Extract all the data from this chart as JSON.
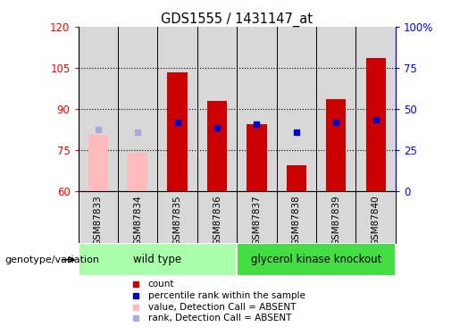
{
  "title": "GDS1555 / 1431147_at",
  "samples": [
    "GSM87833",
    "GSM87834",
    "GSM87835",
    "GSM87836",
    "GSM87837",
    "GSM87838",
    "GSM87839",
    "GSM87840"
  ],
  "count_values": [
    null,
    null,
    103.5,
    93.0,
    84.5,
    69.5,
    93.5,
    108.5
  ],
  "count_absent": [
    80.5,
    74.0,
    null,
    null,
    null,
    null,
    null,
    null
  ],
  "rank_values": [
    null,
    null,
    85.0,
    83.0,
    84.5,
    81.5,
    85.0,
    86.0
  ],
  "rank_absent": [
    82.5,
    81.5,
    null,
    null,
    null,
    null,
    null,
    null
  ],
  "ylim_left": [
    60,
    120
  ],
  "ylim_right": [
    0,
    100
  ],
  "yticks_left": [
    60,
    75,
    90,
    105,
    120
  ],
  "yticks_right": [
    0,
    25,
    50,
    75,
    100
  ],
  "ytick_labels_right": [
    "0",
    "25",
    "50",
    "75",
    "100%"
  ],
  "bar_color_present": "#cc0000",
  "bar_color_absent": "#ffbbbb",
  "rank_color_present": "#0000cc",
  "rank_color_absent": "#aaaadd",
  "wild_type_label": "wild type",
  "knockout_label": "glycerol kinase knockout",
  "genotype_label": "genotype/variation",
  "wild_type_color": "#aaffaa",
  "knockout_color": "#44dd44",
  "legend_items": [
    {
      "color": "#cc0000",
      "label": "count"
    },
    {
      "color": "#0000cc",
      "label": "percentile rank within the sample"
    },
    {
      "color": "#ffbbbb",
      "label": "value, Detection Call = ABSENT"
    },
    {
      "color": "#aaaadd",
      "label": "rank, Detection Call = ABSENT"
    }
  ],
  "plot_bg": "#ffffff",
  "sample_label_bg": "#d8d8d8",
  "bar_width": 0.5,
  "rank_marker_size": 5
}
